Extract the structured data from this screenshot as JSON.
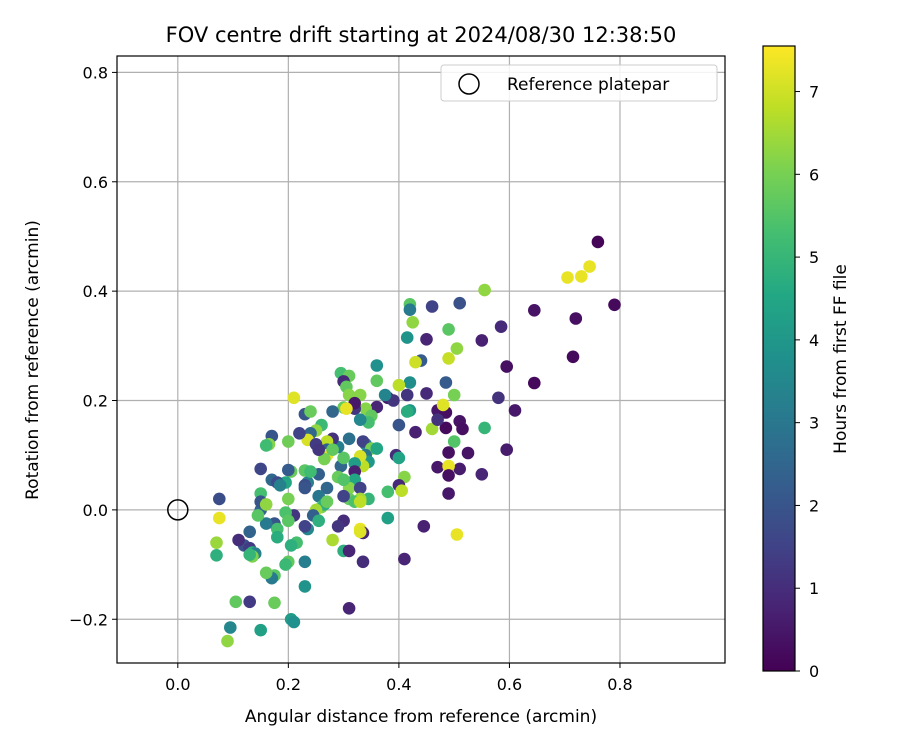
{
  "chart_data": {
    "type": "scatter",
    "title": "FOV centre drift starting at 2024/08/30 12:38:50",
    "xlabel": "Angular distance from reference (arcmin)",
    "ylabel": "Rotation from reference (arcmin)",
    "xlim": [
      -0.11,
      0.99
    ],
    "ylim": [
      -0.28,
      0.83
    ],
    "x_ticks": [
      0.0,
      0.2,
      0.4,
      0.6,
      0.8
    ],
    "y_ticks": [
      -0.2,
      0.0,
      0.2,
      0.4,
      0.6,
      0.8
    ],
    "x_tick_labels": [
      "0.0",
      "0.2",
      "0.4",
      "0.6",
      "0.8"
    ],
    "y_tick_labels": [
      "−0.2",
      "0.0",
      "0.2",
      "0.4",
      "0.6",
      "0.8"
    ],
    "grid": true,
    "legend": {
      "placement": "top-right",
      "entries": [
        "Reference platepar"
      ]
    },
    "reference_point": {
      "x": 0.0,
      "y": 0.0
    },
    "colorbar": {
      "label": "Hours from first FF file",
      "colormap": "viridis",
      "range": [
        0,
        7.55
      ],
      "ticks": [
        0,
        1,
        2,
        3,
        4,
        5,
        6,
        7
      ],
      "tick_labels": [
        "0",
        "1",
        "2",
        "3",
        "4",
        "5",
        "6",
        "7"
      ]
    },
    "points": [
      [
        0.76,
        0.49,
        0.1
      ],
      [
        0.79,
        0.375,
        0.2
      ],
      [
        0.72,
        0.35,
        0.3
      ],
      [
        0.715,
        0.28,
        0.2
      ],
      [
        0.645,
        0.365,
        0.4
      ],
      [
        0.645,
        0.232,
        0.2
      ],
      [
        0.61,
        0.182,
        0.5
      ],
      [
        0.595,
        0.262,
        0.3
      ],
      [
        0.595,
        0.11,
        0.6
      ],
      [
        0.585,
        0.335,
        0.9
      ],
      [
        0.58,
        0.205,
        1.1
      ],
      [
        0.55,
        0.31,
        0.7
      ],
      [
        0.55,
        0.065,
        0.8
      ],
      [
        0.705,
        0.425,
        7.3
      ],
      [
        0.73,
        0.427,
        7.3
      ],
      [
        0.745,
        0.445,
        7.3
      ],
      [
        0.555,
        0.402,
        6.3
      ],
      [
        0.51,
        0.378,
        1.9
      ],
      [
        0.505,
        0.295,
        6.3
      ],
      [
        0.49,
        0.33,
        5.6
      ],
      [
        0.49,
        0.277,
        6.9
      ],
      [
        0.5,
        0.21,
        6.0
      ],
      [
        0.5,
        0.125,
        5.5
      ],
      [
        0.555,
        0.15,
        5.0
      ],
      [
        0.505,
        -0.045,
        7.3
      ],
      [
        0.46,
        0.372,
        1.5
      ],
      [
        0.42,
        0.376,
        5.6
      ],
      [
        0.42,
        0.366,
        3.1
      ],
      [
        0.425,
        0.343,
        6.3
      ],
      [
        0.45,
        0.312,
        0.8
      ],
      [
        0.415,
        0.315,
        3.9
      ],
      [
        0.44,
        0.273,
        2.2
      ],
      [
        0.43,
        0.27,
        7.0
      ],
      [
        0.485,
        0.233,
        2.2
      ],
      [
        0.45,
        0.213,
        0.9
      ],
      [
        0.42,
        0.233,
        3.7
      ],
      [
        0.4,
        0.228,
        6.8
      ],
      [
        0.415,
        0.21,
        1.2
      ],
      [
        0.38,
        0.205,
        0.5
      ],
      [
        0.39,
        0.2,
        1.2
      ],
      [
        0.42,
        0.182,
        4.0
      ],
      [
        0.415,
        0.18,
        4.7
      ],
      [
        0.47,
        0.182,
        0.5
      ],
      [
        0.485,
        0.178,
        0.3
      ],
      [
        0.48,
        0.192,
        7.2
      ],
      [
        0.51,
        0.162,
        0.4
      ],
      [
        0.515,
        0.148,
        0.3
      ],
      [
        0.46,
        0.148,
        6.5
      ],
      [
        0.485,
        0.15,
        0.2
      ],
      [
        0.43,
        0.142,
        0.7
      ],
      [
        0.47,
        0.165,
        1.1
      ],
      [
        0.49,
        0.105,
        0.3
      ],
      [
        0.525,
        0.104,
        0.4
      ],
      [
        0.51,
        0.075,
        0.6
      ],
      [
        0.47,
        0.078,
        0.5
      ],
      [
        0.49,
        0.08,
        7.3
      ],
      [
        0.49,
        0.063,
        0.3
      ],
      [
        0.49,
        0.03,
        0.5
      ],
      [
        0.445,
        -0.03,
        0.7
      ],
      [
        0.41,
        -0.09,
        0.8
      ],
      [
        0.36,
        0.264,
        3.8
      ],
      [
        0.36,
        0.236,
        5.7
      ],
      [
        0.375,
        0.21,
        3.4
      ],
      [
        0.36,
        0.188,
        0.8
      ],
      [
        0.34,
        0.185,
        6.2
      ],
      [
        0.35,
        0.172,
        5.7
      ],
      [
        0.345,
        0.16,
        5.3
      ],
      [
        0.33,
        0.21,
        6.2
      ],
      [
        0.32,
        0.185,
        1.2
      ],
      [
        0.33,
        0.165,
        3.5
      ],
      [
        0.4,
        0.155,
        2.0
      ],
      [
        0.395,
        0.1,
        1.0
      ],
      [
        0.4,
        0.095,
        4.4
      ],
      [
        0.41,
        0.06,
        6.2
      ],
      [
        0.4,
        0.045,
        0.9
      ],
      [
        0.405,
        0.035,
        6.8
      ],
      [
        0.38,
        0.033,
        5.3
      ],
      [
        0.38,
        -0.015,
        4.3
      ],
      [
        0.295,
        0.25,
        5.3
      ],
      [
        0.31,
        0.245,
        5.8
      ],
      [
        0.3,
        0.235,
        0.9
      ],
      [
        0.305,
        0.225,
        5.7
      ],
      [
        0.31,
        0.21,
        6.2
      ],
      [
        0.32,
        0.195,
        0.5
      ],
      [
        0.3,
        0.187,
        5.8
      ],
      [
        0.28,
        0.18,
        2.5
      ],
      [
        0.305,
        0.185,
        7.3
      ],
      [
        0.34,
        0.12,
        3.6
      ],
      [
        0.335,
        0.125,
        1.5
      ],
      [
        0.31,
        0.13,
        2.8
      ],
      [
        0.35,
        0.112,
        6.0
      ],
      [
        0.36,
        0.112,
        4.5
      ],
      [
        0.34,
        0.1,
        2.9
      ],
      [
        0.345,
        0.088,
        4.0
      ],
      [
        0.335,
        0.08,
        6.8
      ],
      [
        0.33,
        0.098,
        7.1
      ],
      [
        0.32,
        0.085,
        4.2
      ],
      [
        0.32,
        0.07,
        0.7
      ],
      [
        0.32,
        0.055,
        4.5
      ],
      [
        0.31,
        0.04,
        6.2
      ],
      [
        0.33,
        0.04,
        1.5
      ],
      [
        0.345,
        0.02,
        5.0
      ],
      [
        0.33,
        0.02,
        6.5
      ],
      [
        0.31,
        0.02,
        5.8
      ],
      [
        0.32,
        0.015,
        5.4
      ],
      [
        0.33,
        0.015,
        6.8
      ],
      [
        0.295,
        0.08,
        2.5
      ],
      [
        0.3,
        0.095,
        5.6
      ],
      [
        0.29,
        0.115,
        3.2
      ],
      [
        0.29,
        0.06,
        5.8
      ],
      [
        0.3,
        0.055,
        5.5
      ],
      [
        0.3,
        0.025,
        1.5
      ],
      [
        0.3,
        -0.02,
        1.0
      ],
      [
        0.29,
        -0.03,
        1.2
      ],
      [
        0.3,
        -0.075,
        4.8
      ],
      [
        0.31,
        -0.075,
        0.8
      ],
      [
        0.33,
        -0.035,
        7.3
      ],
      [
        0.335,
        -0.042,
        0.8
      ],
      [
        0.33,
        -0.04,
        7.2
      ],
      [
        0.335,
        -0.095,
        1.0
      ],
      [
        0.31,
        -0.18,
        0.8
      ],
      [
        0.28,
        0.13,
        1.1
      ],
      [
        0.27,
        0.125,
        6.8
      ],
      [
        0.27,
        0.11,
        2.3
      ],
      [
        0.27,
        0.1,
        7.3
      ],
      [
        0.265,
        0.093,
        6.0
      ],
      [
        0.28,
        0.11,
        5.7
      ],
      [
        0.26,
        0.155,
        5.1
      ],
      [
        0.25,
        0.145,
        6.3
      ],
      [
        0.24,
        0.14,
        2.5
      ],
      [
        0.235,
        0.128,
        7.1
      ],
      [
        0.23,
        0.175,
        2.0
      ],
      [
        0.24,
        0.18,
        5.8
      ],
      [
        0.25,
        0.12,
        1.3
      ],
      [
        0.255,
        0.11,
        1.2
      ],
      [
        0.255,
        0.065,
        2.3
      ],
      [
        0.27,
        0.04,
        2.5
      ],
      [
        0.255,
        0.025,
        3.0
      ],
      [
        0.26,
        0.005,
        6.1
      ],
      [
        0.265,
        0.01,
        4.8
      ],
      [
        0.27,
        0.015,
        5.8
      ],
      [
        0.25,
        0.0,
        6.5
      ],
      [
        0.245,
        -0.01,
        2.3
      ],
      [
        0.255,
        -0.02,
        4.8
      ],
      [
        0.28,
        -0.055,
        6.6
      ],
      [
        0.235,
        -0.035,
        3.5
      ],
      [
        0.23,
        0.072,
        5.6
      ],
      [
        0.235,
        0.05,
        3.3
      ],
      [
        0.23,
        0.045,
        1.8
      ],
      [
        0.23,
        0.04,
        2.0
      ],
      [
        0.24,
        0.07,
        5.2
      ],
      [
        0.21,
        0.205,
        7.2
      ],
      [
        0.22,
        0.14,
        1.5
      ],
      [
        0.2,
        0.125,
        5.9
      ],
      [
        0.205,
        0.07,
        5.8
      ],
      [
        0.2,
        0.073,
        2.2
      ],
      [
        0.195,
        0.05,
        4.5
      ],
      [
        0.2,
        0.02,
        6.0
      ],
      [
        0.21,
        -0.01,
        1.2
      ],
      [
        0.195,
        -0.005,
        5.4
      ],
      [
        0.2,
        -0.02,
        5.6
      ],
      [
        0.23,
        -0.03,
        1.5
      ],
      [
        0.215,
        -0.06,
        5.3
      ],
      [
        0.205,
        -0.065,
        4.8
      ],
      [
        0.2,
        -0.095,
        5.7
      ],
      [
        0.195,
        -0.1,
        5.1
      ],
      [
        0.23,
        -0.095,
        3.2
      ],
      [
        0.23,
        -0.14,
        3.9
      ],
      [
        0.205,
        -0.2,
        4.2
      ],
      [
        0.21,
        -0.205,
        3.8
      ],
      [
        0.17,
        0.135,
        2.0
      ],
      [
        0.165,
        0.12,
        6.2
      ],
      [
        0.16,
        0.118,
        5.2
      ],
      [
        0.15,
        0.075,
        1.6
      ],
      [
        0.17,
        0.055,
        2.5
      ],
      [
        0.18,
        0.05,
        1.8
      ],
      [
        0.185,
        0.045,
        3.3
      ],
      [
        0.15,
        0.03,
        5.3
      ],
      [
        0.15,
        0.0,
        2.5
      ],
      [
        0.15,
        0.015,
        2.0
      ],
      [
        0.16,
        0.01,
        6.3
      ],
      [
        0.175,
        -0.025,
        2.0
      ],
      [
        0.18,
        -0.035,
        5.3
      ],
      [
        0.18,
        -0.05,
        4.7
      ],
      [
        0.16,
        -0.025,
        3.1
      ],
      [
        0.175,
        -0.12,
        5.6
      ],
      [
        0.17,
        -0.125,
        3.1
      ],
      [
        0.16,
        -0.115,
        5.8
      ],
      [
        0.175,
        -0.17,
        5.8
      ],
      [
        0.15,
        -0.22,
        4.3
      ],
      [
        0.145,
        -0.01,
        5.6
      ],
      [
        0.13,
        -0.04,
        2.4
      ],
      [
        0.12,
        -0.065,
        1.9
      ],
      [
        0.11,
        -0.055,
        1.0
      ],
      [
        0.13,
        -0.07,
        1.3
      ],
      [
        0.135,
        -0.078,
        4.8
      ],
      [
        0.14,
        -0.08,
        3.3
      ],
      [
        0.135,
        -0.085,
        6.1
      ],
      [
        0.13,
        -0.082,
        5.0
      ],
      [
        0.105,
        -0.168,
        5.7
      ],
      [
        0.13,
        -0.168,
        1.3
      ],
      [
        0.095,
        -0.215,
        3.5
      ],
      [
        0.09,
        -0.24,
        6.3
      ],
      [
        0.075,
        0.02,
        1.8
      ],
      [
        0.075,
        -0.015,
        7.3
      ],
      [
        0.07,
        -0.06,
        6.4
      ],
      [
        0.07,
        -0.083,
        4.8
      ]
    ]
  }
}
